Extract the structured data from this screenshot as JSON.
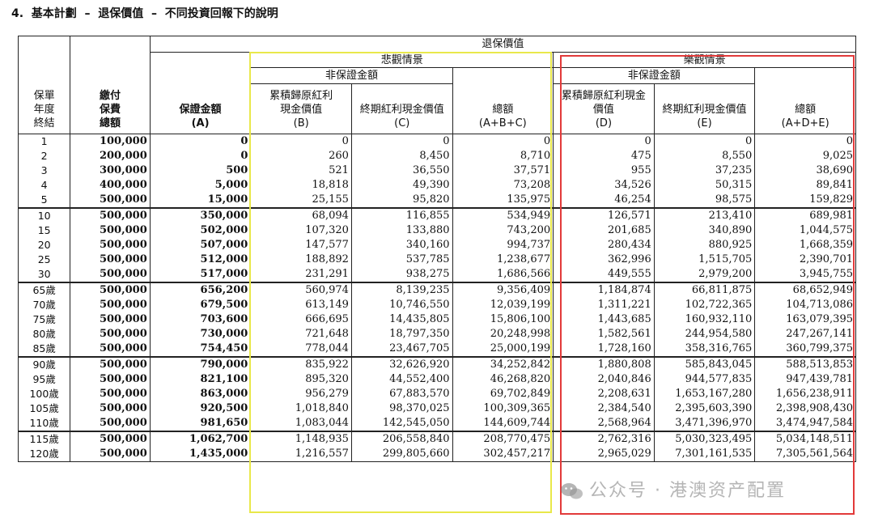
{
  "heading": "4.  基本計劃  –  退保價值  –  不同投資回報下的說明",
  "headers": {
    "surrender_value": "退保價值",
    "pessimistic": "悲觀情景",
    "optimistic": "樂觀情景",
    "non_guaranteed": "非保證金額",
    "col_year": "保單\n年度\n終結",
    "col_premium": "繳付\n保費\n總額",
    "col_a": "保證金額\n(A)",
    "col_b": "累積歸原紅利\n現金價值\n(B)",
    "col_c": "終期紅利現金價值\n(C)",
    "col_abc": "總額\n(A+B+C)",
    "col_d": "累積歸原紅利現金\n價值\n(D)",
    "col_e": "終期紅利現金價值\n(E)",
    "col_ade": "總額\n(A+D+E)"
  },
  "groups": [
    [
      [
        "1",
        "100,000",
        "0",
        "0",
        "0",
        "0",
        "0",
        "0",
        "0"
      ],
      [
        "2",
        "200,000",
        "0",
        "260",
        "8,450",
        "8,710",
        "475",
        "8,550",
        "9,025"
      ],
      [
        "3",
        "300,000",
        "500",
        "521",
        "36,550",
        "37,571",
        "955",
        "37,235",
        "38,690"
      ],
      [
        "4",
        "400,000",
        "5,000",
        "18,818",
        "49,390",
        "73,208",
        "34,526",
        "50,315",
        "89,841"
      ],
      [
        "5",
        "500,000",
        "15,000",
        "25,155",
        "95,820",
        "135,975",
        "46,254",
        "98,575",
        "159,829"
      ]
    ],
    [
      [
        "10",
        "500,000",
        "350,000",
        "68,094",
        "116,855",
        "534,949",
        "126,571",
        "213,410",
        "689,981"
      ],
      [
        "15",
        "500,000",
        "502,000",
        "107,320",
        "133,880",
        "743,200",
        "201,685",
        "340,890",
        "1,044,575"
      ],
      [
        "20",
        "500,000",
        "507,000",
        "147,577",
        "340,160",
        "994,737",
        "280,434",
        "880,925",
        "1,668,359"
      ],
      [
        "25",
        "500,000",
        "512,000",
        "188,892",
        "537,785",
        "1,238,677",
        "362,996",
        "1,515,705",
        "2,390,701"
      ],
      [
        "30",
        "500,000",
        "517,000",
        "231,291",
        "938,275",
        "1,686,566",
        "449,555",
        "2,979,200",
        "3,945,755"
      ]
    ],
    [
      [
        "65歲",
        "500,000",
        "656,200",
        "560,974",
        "8,139,235",
        "9,356,409",
        "1,184,874",
        "66,811,875",
        "68,652,949"
      ],
      [
        "70歲",
        "500,000",
        "679,500",
        "613,149",
        "10,746,550",
        "12,039,199",
        "1,311,221",
        "102,722,365",
        "104,713,086"
      ],
      [
        "75歲",
        "500,000",
        "703,600",
        "666,695",
        "14,435,805",
        "15,806,100",
        "1,443,685",
        "160,932,110",
        "163,079,395"
      ],
      [
        "80歲",
        "500,000",
        "730,000",
        "721,648",
        "18,797,350",
        "20,248,998",
        "1,582,561",
        "244,954,580",
        "247,267,141"
      ],
      [
        "85歲",
        "500,000",
        "754,450",
        "778,044",
        "23,467,705",
        "25,000,199",
        "1,728,160",
        "358,316,765",
        "360,799,375"
      ]
    ],
    [
      [
        "90歲",
        "500,000",
        "790,000",
        "835,922",
        "32,626,920",
        "34,252,842",
        "1,880,808",
        "585,843,045",
        "588,513,853"
      ],
      [
        "95歲",
        "500,000",
        "821,100",
        "895,320",
        "44,552,400",
        "46,268,820",
        "2,040,846",
        "944,577,835",
        "947,439,781"
      ],
      [
        "100歲",
        "500,000",
        "863,000",
        "956,279",
        "67,883,570",
        "69,702,849",
        "2,208,631",
        "1,653,167,280",
        "1,656,238,911"
      ],
      [
        "105歲",
        "500,000",
        "920,500",
        "1,018,840",
        "98,370,025",
        "100,309,365",
        "2,384,540",
        "2,395,603,390",
        "2,398,908,430"
      ],
      [
        "110歲",
        "500,000",
        "981,650",
        "1,083,044",
        "142,545,050",
        "144,609,744",
        "2,568,964",
        "3,471,396,970",
        "3,474,947,584"
      ]
    ],
    [
      [
        "115歲",
        "500,000",
        "1,062,700",
        "1,148,935",
        "206,558,840",
        "208,770,475",
        "2,762,316",
        "5,030,323,495",
        "5,034,148,511"
      ],
      [
        "120歲",
        "500,000",
        "1,435,000",
        "1,216,557",
        "299,805,660",
        "302,457,217",
        "2,965,029",
        "7,301,161,535",
        "7,305,561,564"
      ]
    ]
  ],
  "highlight_colors": {
    "pessimistic_box": "#e9e84a",
    "optimistic_box": "#e23a3a"
  },
  "watermark": {
    "text": "公众号 · 港澳资产配置",
    "icon": "wechat-icon"
  }
}
